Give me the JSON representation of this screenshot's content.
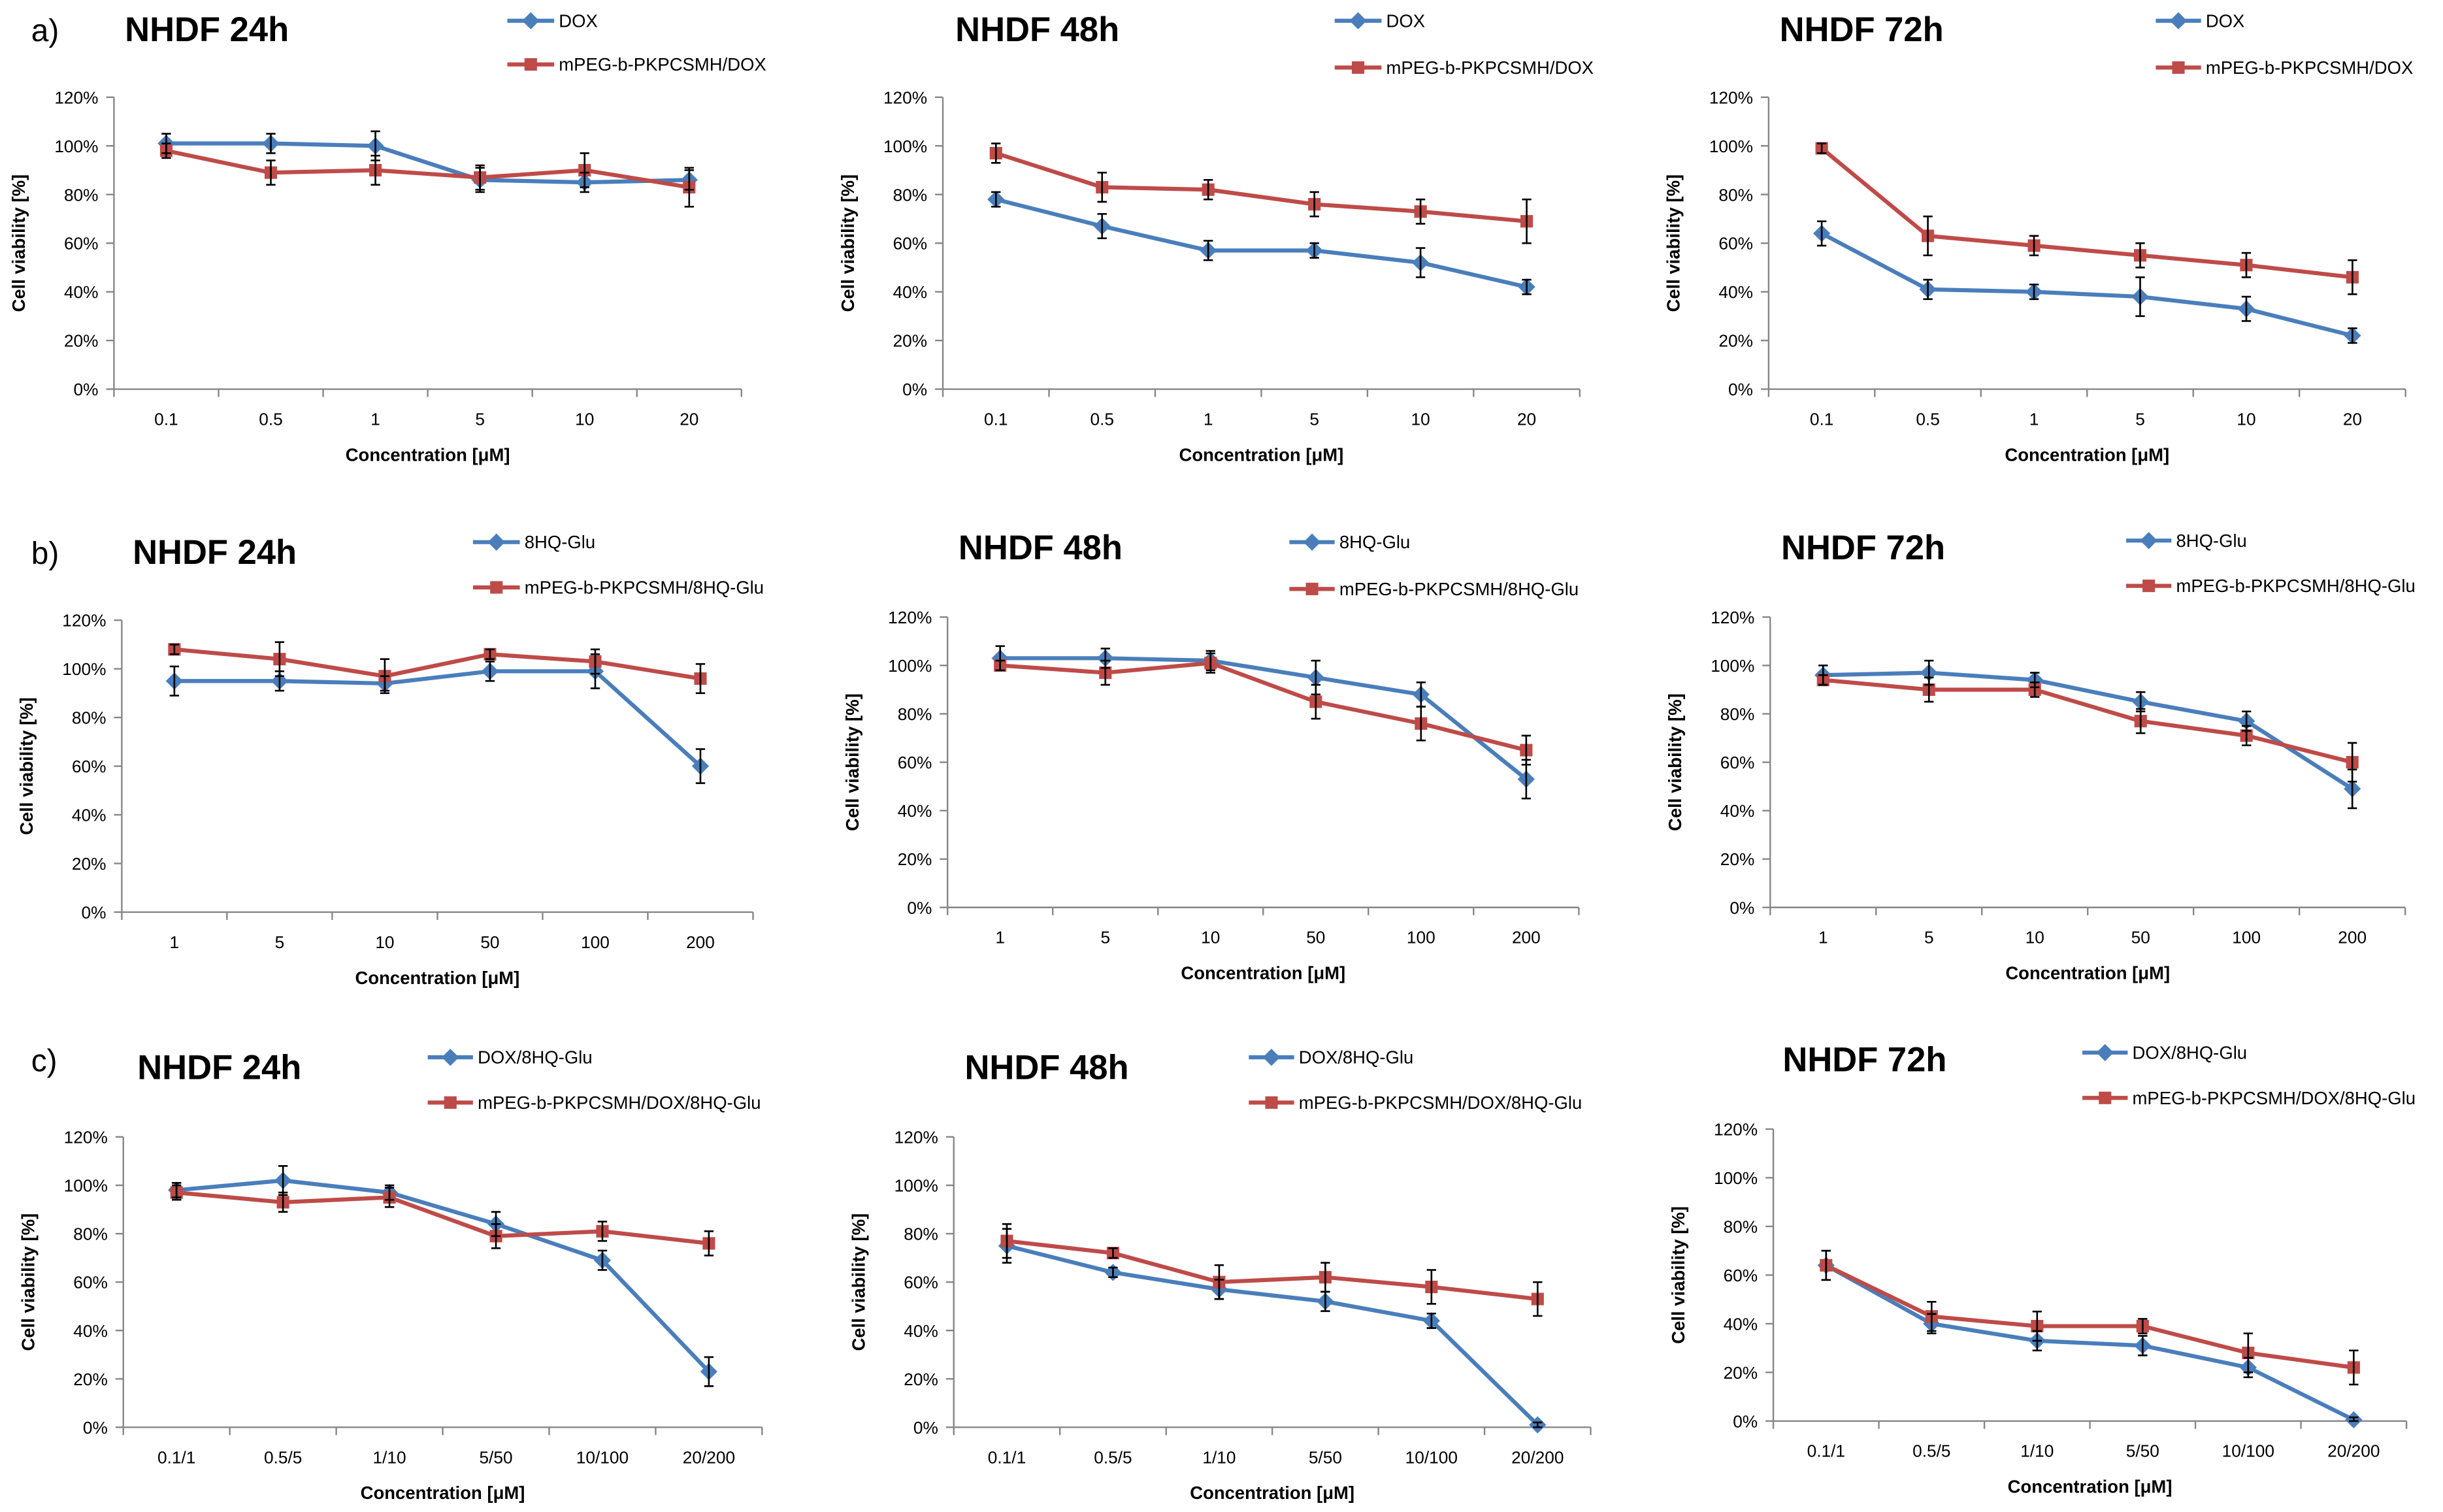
{
  "figure": {
    "panel_labels": [
      "a)",
      "b)",
      "c)"
    ]
  },
  "chart_data": [
    {
      "type": "line",
      "title": "NHDF 24h",
      "xlabel": "Concentration [μM]",
      "ylabel": "Cell viability [%]",
      "categories": [
        "0.1",
        "0.5",
        "1",
        "5",
        "10",
        "20"
      ],
      "ylim": [
        0,
        120
      ],
      "yticks": [
        0,
        20,
        40,
        60,
        80,
        100,
        120
      ],
      "ytick_labels": [
        "0%",
        "20%",
        "40%",
        "60%",
        "80%",
        "100%",
        "120%"
      ],
      "legend": "top-right",
      "series": [
        {
          "name": "DOX",
          "marker": "diamond",
          "color": "#4A7EBB",
          "values": [
            101,
            101,
            100,
            86,
            85,
            86
          ],
          "errors": [
            4,
            4,
            6,
            5,
            4,
            4
          ]
        },
        {
          "name": "mPEG-b-PKPCSMH/DOX",
          "marker": "square",
          "color": "#BE4B48",
          "values": [
            98,
            89,
            90,
            87,
            90,
            83
          ],
          "errors": [
            3,
            5,
            6,
            5,
            7,
            8
          ]
        }
      ]
    },
    {
      "type": "line",
      "title": "NHDF 48h",
      "xlabel": "Concentration [μM]",
      "ylabel": "Cell viability [%]",
      "categories": [
        "0.1",
        "0.5",
        "1",
        "5",
        "10",
        "20"
      ],
      "ylim": [
        0,
        120
      ],
      "yticks": [
        0,
        20,
        40,
        60,
        80,
        100,
        120
      ],
      "ytick_labels": [
        "0%",
        "20%",
        "40%",
        "60%",
        "80%",
        "100%",
        "120%"
      ],
      "legend": "top-right",
      "series": [
        {
          "name": "DOX",
          "marker": "diamond",
          "color": "#4A7EBB",
          "values": [
            78,
            67,
            57,
            57,
            52,
            42
          ],
          "errors": [
            3,
            5,
            4,
            3,
            6,
            3
          ]
        },
        {
          "name": "mPEG-b-PKPCSMH/DOX",
          "marker": "square",
          "color": "#BE4B48",
          "values": [
            97,
            83,
            82,
            76,
            73,
            69
          ],
          "errors": [
            4,
            6,
            4,
            5,
            5,
            9
          ]
        }
      ]
    },
    {
      "type": "line",
      "title": "NHDF 72h",
      "xlabel": "Concentration [μM]",
      "ylabel": "Cell viability [%]",
      "categories": [
        "0.1",
        "0.5",
        "1",
        "5",
        "10",
        "20"
      ],
      "ylim": [
        0,
        120
      ],
      "yticks": [
        0,
        20,
        40,
        60,
        80,
        100,
        120
      ],
      "ytick_labels": [
        "0%",
        "20%",
        "40%",
        "60%",
        "80%",
        "100%",
        "120%"
      ],
      "legend": "top-right",
      "series": [
        {
          "name": "DOX",
          "marker": "diamond",
          "color": "#4A7EBB",
          "values": [
            64,
            41,
            40,
            38,
            33,
            22
          ],
          "errors": [
            5,
            4,
            3,
            8,
            5,
            3
          ]
        },
        {
          "name": "mPEG-b-PKPCSMH/DOX",
          "marker": "square",
          "color": "#BE4B48",
          "values": [
            99,
            63,
            59,
            55,
            51,
            46
          ],
          "errors": [
            2,
            8,
            4,
            5,
            5,
            7
          ]
        }
      ]
    },
    {
      "type": "line",
      "title": "NHDF 24h",
      "xlabel": "Concentration [μM]",
      "ylabel": "Cell viability [%]",
      "categories": [
        "1",
        "5",
        "10",
        "50",
        "100",
        "200"
      ],
      "ylim": [
        0,
        120
      ],
      "yticks": [
        0,
        20,
        40,
        60,
        80,
        100,
        120
      ],
      "ytick_labels": [
        "0%",
        "20%",
        "40%",
        "60%",
        "80%",
        "100%",
        "120%"
      ],
      "legend": "top-right",
      "series": [
        {
          "name": "8HQ-Glu",
          "marker": "diamond",
          "color": "#4A7EBB",
          "values": [
            95,
            95,
            94,
            99,
            99,
            60
          ],
          "errors": [
            6,
            4,
            3,
            4,
            7,
            7
          ]
        },
        {
          "name": "mPEG-b-PKPCSMH/8HQ-Glu",
          "marker": "square",
          "color": "#BE4B48",
          "values": [
            108,
            104,
            97,
            106,
            103,
            96
          ],
          "errors": [
            2,
            7,
            7,
            2,
            5,
            6
          ]
        }
      ]
    },
    {
      "type": "line",
      "title": "NHDF 48h",
      "xlabel": "Concentration [μM]",
      "ylabel": "Cell viability [%]",
      "categories": [
        "1",
        "5",
        "10",
        "50",
        "100",
        "200"
      ],
      "ylim": [
        0,
        120
      ],
      "yticks": [
        0,
        20,
        40,
        60,
        80,
        100,
        120
      ],
      "ytick_labels": [
        "0%",
        "20%",
        "40%",
        "60%",
        "80%",
        "100%",
        "120%"
      ],
      "legend": "top-right",
      "series": [
        {
          "name": "8HQ-Glu",
          "marker": "diamond",
          "color": "#4A7EBB",
          "values": [
            103,
            103,
            102,
            95,
            88,
            53
          ],
          "errors": [
            5,
            4,
            4,
            7,
            5,
            8
          ]
        },
        {
          "name": "mPEG-b-PKPCSMH/8HQ-Glu",
          "marker": "square",
          "color": "#BE4B48",
          "values": [
            100,
            97,
            101,
            85,
            76,
            65
          ],
          "errors": [
            2,
            5,
            4,
            7,
            7,
            6
          ]
        }
      ]
    },
    {
      "type": "line",
      "title": "NHDF 72h",
      "xlabel": "Concentration [μM]",
      "ylabel": "Cell viability [%]",
      "categories": [
        "1",
        "5",
        "10",
        "50",
        "100",
        "200"
      ],
      "ylim": [
        0,
        120
      ],
      "yticks": [
        0,
        20,
        40,
        60,
        80,
        100,
        120
      ],
      "ytick_labels": [
        "0%",
        "20%",
        "40%",
        "60%",
        "80%",
        "100%",
        "120%"
      ],
      "legend": "top-right",
      "series": [
        {
          "name": "8HQ-Glu",
          "marker": "diamond",
          "color": "#4A7EBB",
          "values": [
            96,
            97,
            94,
            85,
            77,
            49
          ],
          "errors": [
            4,
            5,
            3,
            4,
            4,
            8
          ]
        },
        {
          "name": "mPEG-b-PKPCSMH/8HQ-Glu",
          "marker": "square",
          "color": "#BE4B48",
          "values": [
            94,
            90,
            90,
            77,
            71,
            60
          ],
          "errors": [
            2,
            5,
            3,
            5,
            4,
            8
          ]
        }
      ]
    },
    {
      "type": "line",
      "title": "NHDF 24h",
      "xlabel": "Concentration [μM]",
      "ylabel": "Cell viability [%]",
      "categories": [
        "0.1/1",
        "0.5/5",
        "1/10",
        "5/50",
        "10/100",
        "20/200"
      ],
      "ylim": [
        0,
        120
      ],
      "yticks": [
        0,
        20,
        40,
        60,
        80,
        100,
        120
      ],
      "ytick_labels": [
        "0%",
        "20%",
        "40%",
        "60%",
        "80%",
        "100%",
        "120%"
      ],
      "legend": "top-right",
      "series": [
        {
          "name": "DOX/8HQ-Glu",
          "marker": "diamond",
          "color": "#4A7EBB",
          "values": [
            98,
            102,
            97,
            84,
            69,
            23
          ],
          "errors": [
            3,
            6,
            3,
            5,
            4,
            6
          ]
        },
        {
          "name": "mPEG-b-PKPCSMH/DOX/8HQ-Glu",
          "marker": "square",
          "color": "#BE4B48",
          "values": [
            97,
            93,
            95,
            79,
            81,
            76
          ],
          "errors": [
            3,
            4,
            4,
            5,
            4,
            5
          ]
        }
      ]
    },
    {
      "type": "line",
      "title": "NHDF 48h",
      "xlabel": "Concentration [μM]",
      "ylabel": "Cell viability [%]",
      "categories": [
        "0.1/1",
        "0.5/5",
        "1/10",
        "5/50",
        "10/100",
        "20/200"
      ],
      "ylim": [
        0,
        120
      ],
      "yticks": [
        0,
        20,
        40,
        60,
        80,
        100,
        120
      ],
      "ytick_labels": [
        "0%",
        "20%",
        "40%",
        "60%",
        "80%",
        "100%",
        "120%"
      ],
      "legend": "top-right",
      "series": [
        {
          "name": "DOX/8HQ-Glu",
          "marker": "diamond",
          "color": "#4A7EBB",
          "values": [
            75,
            64,
            57,
            52,
            44,
            1
          ],
          "errors": [
            7,
            2,
            4,
            4,
            3,
            1
          ]
        },
        {
          "name": "mPEG-b-PKPCSMH/DOX/8HQ-Glu",
          "marker": "square",
          "color": "#BE4B48",
          "values": [
            77,
            72,
            60,
            62,
            58,
            53
          ],
          "errors": [
            7,
            2,
            7,
            6,
            7,
            7
          ]
        }
      ]
    },
    {
      "type": "line",
      "title": "NHDF 72h",
      "xlabel": "Concentration [μM]",
      "ylabel": "Cell viability [%]",
      "categories": [
        "0.1/1",
        "0.5/5",
        "1/10",
        "5/50",
        "10/100",
        "20/200"
      ],
      "ylim": [
        0,
        120
      ],
      "yticks": [
        0,
        20,
        40,
        60,
        80,
        100,
        120
      ],
      "ytick_labels": [
        "0%",
        "20%",
        "40%",
        "60%",
        "80%",
        "100%",
        "120%"
      ],
      "legend": "top-right",
      "series": [
        {
          "name": "DOX/8HQ-Glu",
          "marker": "diamond",
          "color": "#4A7EBB",
          "values": [
            64,
            40,
            33,
            31,
            22,
            0.5
          ],
          "errors": [
            6,
            4,
            4,
            4,
            4,
            1
          ]
        },
        {
          "name": "mPEG-b-PKPCSMH/DOX/8HQ-Glu",
          "marker": "square",
          "color": "#BE4B48",
          "values": [
            64,
            43,
            39,
            39,
            28,
            22
          ],
          "errors": [
            6,
            6,
            6,
            3,
            8,
            7
          ]
        }
      ]
    }
  ]
}
